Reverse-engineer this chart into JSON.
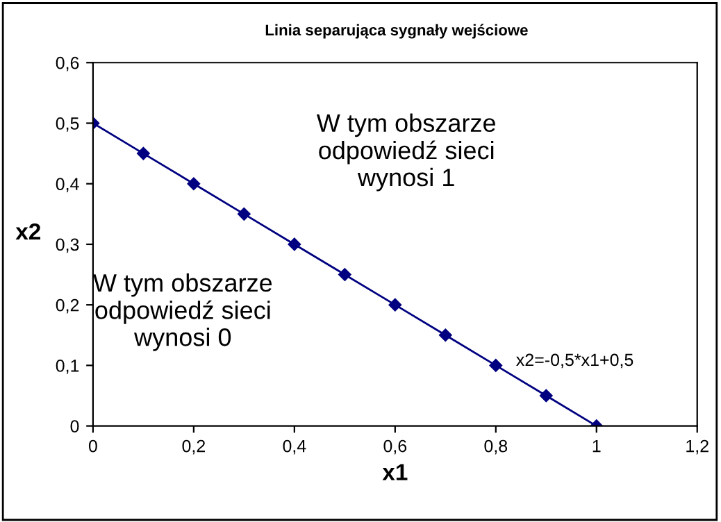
{
  "chart_data": {
    "type": "line",
    "title": "Linia separująca sygnały wejściowe",
    "xlabel": "x1",
    "ylabel": "x2",
    "x": [
      0,
      0.1,
      0.2,
      0.3,
      0.4,
      0.5,
      0.6,
      0.7,
      0.8,
      0.9,
      1
    ],
    "series": [
      {
        "color": "#000080",
        "values": [
          0.5,
          0.45,
          0.4,
          0.35,
          0.3,
          0.25,
          0.2,
          0.15,
          0.1,
          0.05,
          0
        ]
      }
    ],
    "marker": "diamond",
    "line_style": "solid",
    "grid": false,
    "legend": false,
    "xlim": [
      0,
      1.2
    ],
    "ylim": [
      0,
      0.6
    ],
    "xticks": [
      0,
      {
        "value": 0.2,
        "label": "0,2"
      },
      {
        "value": 0.4,
        "label": "0,4"
      },
      {
        "value": 0.6,
        "label": "0,6"
      },
      {
        "value": 0.8,
        "label": "0,8"
      },
      1,
      {
        "value": 1.2,
        "label": "1,2"
      }
    ],
    "yticks": [
      0,
      {
        "value": 0.1,
        "label": "0,1"
      },
      {
        "value": 0.2,
        "label": "0,2"
      },
      {
        "value": 0.3,
        "label": "0,3"
      },
      {
        "value": 0.4,
        "label": "0,4"
      },
      {
        "value": 0.5,
        "label": "0,5"
      },
      {
        "value": 0.6,
        "label": "0,6"
      }
    ],
    "annotations": [
      "W tym obszarze\nodpowiedź sieci\nwynosi 1",
      "W tym obszarze\nodpowiedź sieci\nwynosi 0",
      "x2=-0,5*x1+0,5"
    ]
  }
}
